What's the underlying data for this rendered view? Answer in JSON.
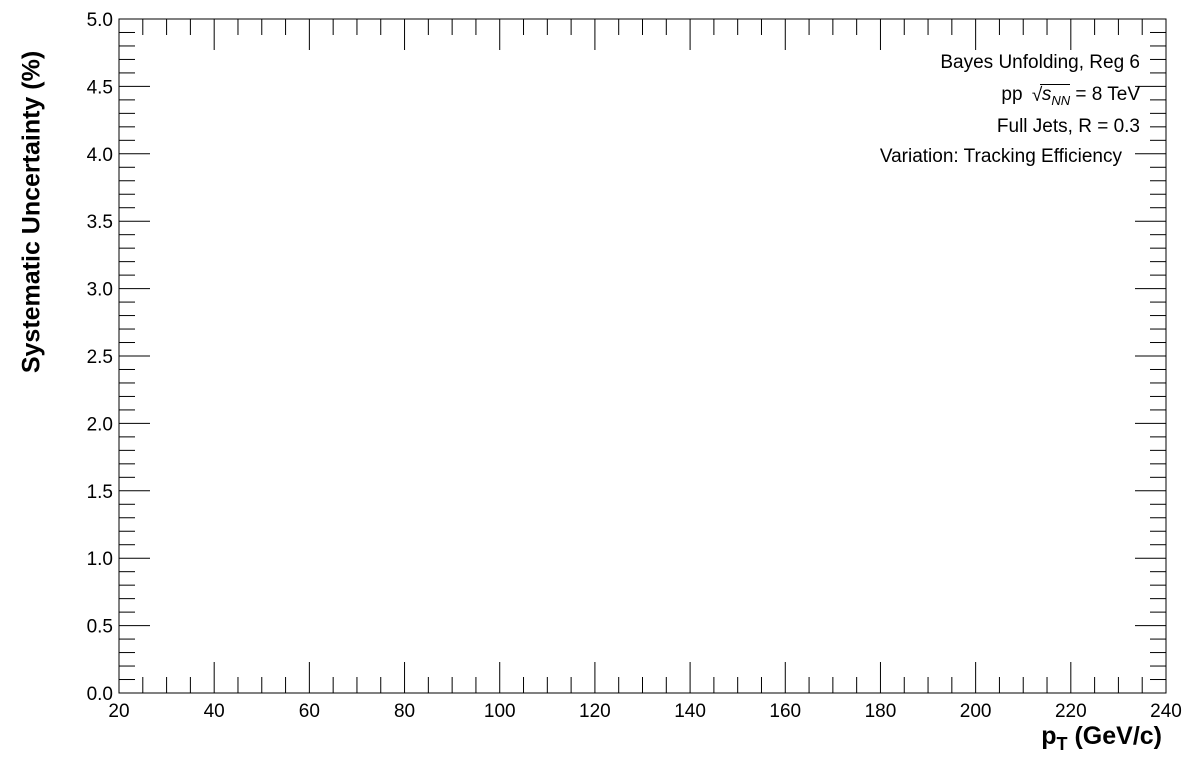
{
  "chart_data": {
    "type": "line",
    "title": "",
    "xlabel": {
      "main": "p",
      "sub": "T",
      "units": "(GeV/c)"
    },
    "ylabel": "Systematic Uncertainty (%)",
    "xlim": [
      20,
      240
    ],
    "ylim": [
      0.0,
      5.0
    ],
    "x_ticks": [
      20,
      40,
      60,
      80,
      100,
      120,
      140,
      160,
      180,
      200,
      220,
      240
    ],
    "x_tick_labels": [
      "20",
      "40",
      "60",
      "80",
      "100",
      "120",
      "140",
      "160",
      "180",
      "200",
      "220",
      "240"
    ],
    "y_ticks": [
      0.0,
      0.5,
      1.0,
      1.5,
      2.0,
      2.5,
      3.0,
      3.5,
      4.0,
      4.5,
      5.0
    ],
    "y_tick_labels": [
      "0.0",
      "0.5",
      "1.0",
      "1.5",
      "2.0",
      "2.5",
      "3.0",
      "3.5",
      "4.0",
      "4.5",
      "5.0"
    ],
    "x_minor_step": 5,
    "y_minor_step": 0.1,
    "grid": false,
    "series": [],
    "annotations": {
      "line1": "Bayes Unfolding, Reg 6",
      "line2_prefix": "pp",
      "line2_sqrt_var": "s",
      "line2_sqrt_sub": "NN",
      "line2_suffix": "= 8 TeV",
      "line3": "Full Jets, R = 0.3",
      "line4": "Variation: Tracking Efficiency"
    }
  }
}
